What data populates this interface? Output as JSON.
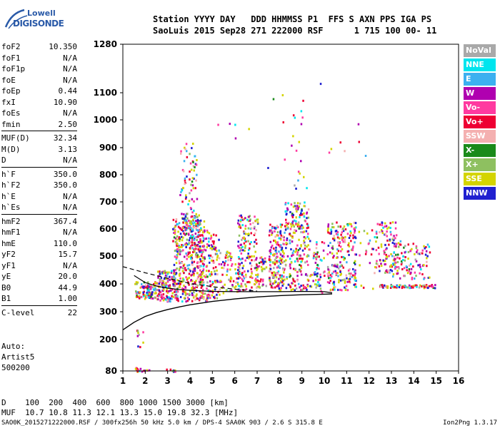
{
  "logo": {
    "line1": "Lowell",
    "line2": "DIGISONDE"
  },
  "header": {
    "row1": "Station YYYY DAY   DDD HHMMSS P1  FFS S AXN PPS IGA PS",
    "row2": "SaoLuis 2015 Sep28 271 222000 RSF      1 715 100 00- 11"
  },
  "params": [
    [
      {
        "name": "foF2",
        "value": "10.350"
      },
      {
        "name": "foF1",
        "value": "N/A"
      },
      {
        "name": "foF1p",
        "value": "N/A"
      },
      {
        "name": "foE",
        "value": "N/A"
      },
      {
        "name": "foEp",
        "value": "0.44"
      },
      {
        "name": "fxI",
        "value": "10.90"
      },
      {
        "name": "foEs",
        "value": "N/A"
      },
      {
        "name": "fmin",
        "value": "2.50"
      }
    ],
    [
      {
        "name": "MUF(D)",
        "value": "32.34"
      },
      {
        "name": "M(D)",
        "value": "3.13"
      },
      {
        "name": "D",
        "value": "N/A"
      }
    ],
    [
      {
        "name": "h`F",
        "value": "350.0"
      },
      {
        "name": "h`F2",
        "value": "350.0"
      },
      {
        "name": "h`E",
        "value": "N/A"
      },
      {
        "name": "h`Es",
        "value": "N/A"
      }
    ],
    [
      {
        "name": "hmF2",
        "value": "367.4"
      },
      {
        "name": "hmF1",
        "value": "N/A"
      },
      {
        "name": "hmE",
        "value": "110.0"
      },
      {
        "name": "yF2",
        "value": "15.7"
      },
      {
        "name": "yF1",
        "value": "N/A"
      },
      {
        "name": "yE",
        "value": "20.0"
      },
      {
        "name": "B0",
        "value": "44.9"
      },
      {
        "name": "B1",
        "value": "1.00"
      }
    ],
    [
      {
        "name": "C-level",
        "value": "22"
      }
    ]
  ],
  "autoscaling": {
    "line1": "Auto:",
    "line2": "Artist5",
    "line3": "500200"
  },
  "legend": [
    {
      "label": "NoVal",
      "color": "#a9a9a9"
    },
    {
      "label": "NNE",
      "color": "#00e5ee"
    },
    {
      "label": "E",
      "color": "#3cb0f0"
    },
    {
      "label": "W",
      "color": "#b000b0"
    },
    {
      "label": "Vo-",
      "color": "#ff3aa0"
    },
    {
      "label": "Vo+",
      "color": "#ee0033"
    },
    {
      "label": "SSW",
      "color": "#f4b0b0"
    },
    {
      "label": "X-",
      "color": "#1a8a1a"
    },
    {
      "label": "X+",
      "color": "#8ec060"
    },
    {
      "label": "SSE",
      "color": "#d4d400"
    },
    {
      "label": "NNW",
      "color": "#2020d0"
    }
  ],
  "bottom": {
    "d_row": "D    100  200  400  600  800 1000 1500 3000 [km]",
    "muf_row": "MUF  10.7 10.8 11.3 12.1 13.3 15.0 19.8 32.3 [MHz]"
  },
  "footer": {
    "left": "SAO0K_2015271222000.RSF / 300fx256h 50 kHz 5.0 km / DPS-4 SAA0K 903 / 2.6 S 315.8 E",
    "right": "Ion2Png 1.3.17"
  },
  "chart_data": {
    "type": "scatter",
    "x_ticks": [
      1,
      2,
      3,
      4,
      5,
      6,
      7,
      8,
      9,
      10,
      11,
      12,
      13,
      14,
      15,
      16
    ],
    "y_ticks": [
      80,
      200,
      300,
      400,
      500,
      600,
      700,
      800,
      900,
      1000,
      1100,
      1280
    ],
    "xlim": [
      1,
      16
    ],
    "ylim": [
      80,
      1280
    ],
    "grid": false,
    "x_scale": "linear (MHz)",
    "y_scale": "non-linear (km)",
    "profile_solid": {
      "x": [
        1.0,
        1.5,
        2.0,
        2.5,
        3.0,
        3.5,
        4.0,
        5.0,
        6.0,
        7.0,
        8.0,
        9.0,
        10.0,
        10.35
      ],
      "y": [
        235,
        262,
        283,
        297,
        308,
        317,
        325,
        337,
        346,
        353,
        358,
        361,
        363,
        364
      ]
    },
    "profile_dashed": {
      "x": [
        1.0,
        2.0,
        3.0,
        4.0,
        5.0,
        6.0,
        7.0
      ],
      "y": [
        462,
        440,
        420,
        402,
        390,
        381,
        374
      ]
    },
    "trace_black": {
      "x": [
        1.5,
        2.0,
        2.5,
        3.0,
        3.5,
        4.0,
        5.0,
        6.0,
        7.0,
        8.0,
        9.0,
        10.0,
        10.35
      ],
      "y": [
        430,
        405,
        392,
        385,
        380,
        377,
        373,
        372,
        372,
        372,
        373,
        372,
        368
      ]
    },
    "clusters": [
      {
        "x": [
          1.5,
          2.2
        ],
        "y": [
          80,
          96
        ],
        "n": 18
      },
      {
        "x": [
          1.6,
          1.9
        ],
        "y": [
          160,
          240
        ],
        "n": 10
      },
      {
        "x": [
          2.9,
          3.4
        ],
        "y": [
          80,
          90
        ],
        "n": 8
      },
      {
        "x": [
          1.5,
          2.5
        ],
        "y": [
          350,
          410
        ],
        "n": 110
      },
      {
        "x": [
          2.5,
          3.3
        ],
        "y": [
          340,
          450
        ],
        "n": 130
      },
      {
        "x": [
          3.2,
          4.6
        ],
        "y": [
          340,
          640
        ],
        "n": 430
      },
      {
        "x": [
          3.5,
          4.3
        ],
        "y": [
          640,
          920
        ],
        "n": 70
      },
      {
        "x": [
          3.5,
          4.4
        ],
        "y": [
          600,
          660
        ],
        "n": 50
      },
      {
        "x": [
          4.4,
          5.3
        ],
        "y": [
          340,
          600
        ],
        "n": 150
      },
      {
        "x": [
          5.3,
          6.2
        ],
        "y": [
          370,
          520
        ],
        "n": 80
      },
      {
        "x": [
          6.1,
          7.0
        ],
        "y": [
          380,
          660
        ],
        "n": 160
      },
      {
        "x": [
          6.9,
          7.4
        ],
        "y": [
          390,
          500
        ],
        "n": 40
      },
      {
        "x": [
          7.5,
          8.2
        ],
        "y": [
          380,
          620
        ],
        "n": 180
      },
      {
        "x": [
          8.2,
          9.3
        ],
        "y": [
          380,
          700
        ],
        "n": 230
      },
      {
        "x": [
          8.5,
          9.3
        ],
        "y": [
          700,
          1040
        ],
        "n": 18
      },
      {
        "x": [
          9.5,
          9.8
        ],
        "y": [
          380,
          520
        ],
        "n": 20
      },
      {
        "x": [
          9.3,
          10.0
        ],
        "y": [
          370,
          560
        ],
        "n": 40
      },
      {
        "x": [
          10.1,
          11.4
        ],
        "y": [
          380,
          630
        ],
        "n": 210
      },
      {
        "x": [
          11.5,
          12.2
        ],
        "y": [
          380,
          600
        ],
        "n": 20
      },
      {
        "x": [
          12.2,
          13.2
        ],
        "y": [
          440,
          630
        ],
        "n": 100
      },
      {
        "x": [
          13.0,
          14.7
        ],
        "y": [
          420,
          560
        ],
        "n": 110
      },
      {
        "x": [
          12.4,
          15.0
        ],
        "y": [
          388,
          400
        ],
        "n": 80
      },
      {
        "x": [
          4.0,
          12.0
        ],
        "y": [
          800,
          1150
        ],
        "n": 20
      }
    ]
  }
}
